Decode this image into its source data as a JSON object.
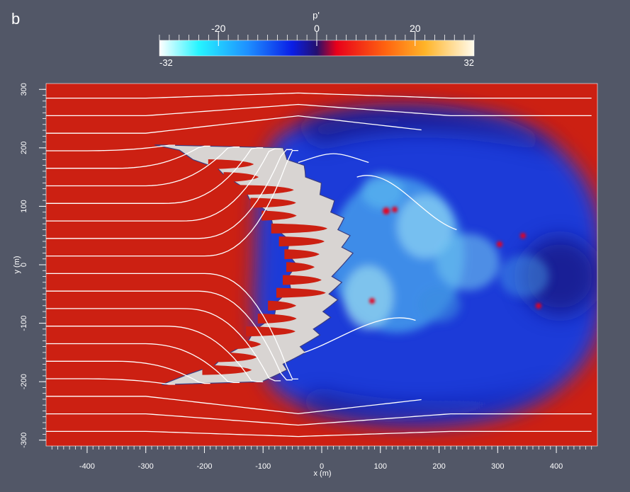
{
  "panel": {
    "label": "b"
  },
  "colorbar": {
    "title": "p'",
    "min": -32,
    "max": 32,
    "min_label": "-32",
    "max_label": "32",
    "tick_values": [
      -20,
      0,
      20
    ],
    "tick_labels": [
      "-20",
      "0",
      "20"
    ],
    "stops": [
      {
        "v": -32,
        "color": "#ffffff"
      },
      {
        "v": -24,
        "color": "#26f4ff"
      },
      {
        "v": -14,
        "color": "#1e8fff"
      },
      {
        "v": -5,
        "color": "#0a1ee6"
      },
      {
        "v": 0,
        "color": "#24106e"
      },
      {
        "v": 4,
        "color": "#e8001a"
      },
      {
        "v": 14,
        "color": "#ff6410"
      },
      {
        "v": 22,
        "color": "#ffb428"
      },
      {
        "v": 32,
        "color": "#fffbec"
      }
    ]
  },
  "chart_data": {
    "type": "heatmap",
    "title": "p'",
    "xlabel": "x (m)",
    "ylabel": "y (m)",
    "xlim": [
      -470,
      470
    ],
    "ylim": [
      -310,
      310
    ],
    "xticks": [
      -400,
      -300,
      -200,
      -100,
      0,
      100,
      200,
      300,
      400
    ],
    "yticks": [
      -300,
      -200,
      -100,
      0,
      100,
      200,
      300
    ],
    "xtick_labels": [
      "-400",
      "-300",
      "-200",
      "-100",
      "0",
      "100",
      "200",
      "300",
      "400"
    ],
    "ytick_labels": [
      "-300",
      "-200",
      "-100",
      "0",
      "100",
      "200",
      "300"
    ],
    "value_range": [
      -32,
      32
    ],
    "colors": {
      "positive": "#cc2012",
      "negative": "#1c3ad8",
      "deep_negative": "#1c1a86",
      "fire_core": "#d8d4d2",
      "streamline": "#ffffff",
      "isoline": "#3a3d80"
    },
    "fire_front_x": [
      [
        -280,
        205
      ],
      [
        -250,
        196
      ],
      [
        -215,
        180
      ],
      [
        -185,
        165
      ],
      [
        -160,
        152
      ],
      [
        -140,
        132
      ],
      [
        -118,
        112
      ],
      [
        -95,
        88
      ],
      [
        -78,
        65
      ],
      [
        -62,
        42
      ],
      [
        -54,
        20
      ],
      [
        -50,
        0
      ],
      [
        -52,
        -20
      ],
      [
        -60,
        -42
      ],
      [
        -72,
        -64
      ],
      [
        -88,
        -88
      ],
      [
        -110,
        -112
      ],
      [
        -135,
        -135
      ],
      [
        -160,
        -155
      ],
      [
        -190,
        -172
      ],
      [
        -225,
        -188
      ],
      [
        -280,
        -205
      ]
    ],
    "streamlines_yoffset": [
      -285,
      -255,
      -225,
      -195,
      -165,
      -135,
      -105,
      -75,
      -45,
      -15,
      15,
      45,
      75,
      105,
      135,
      165,
      195,
      225,
      255,
      285
    ]
  }
}
